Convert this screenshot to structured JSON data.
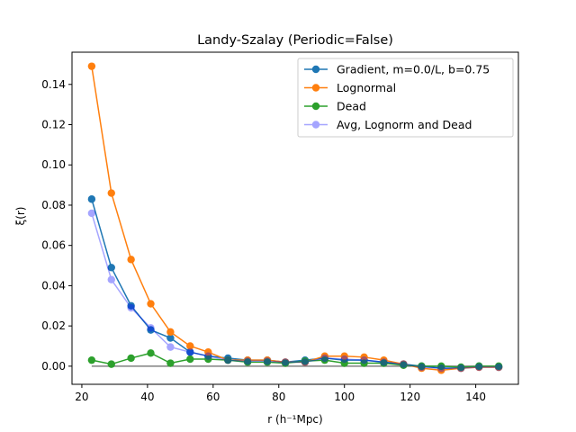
{
  "chart_data": {
    "type": "line",
    "title": "Landy-Szalay (Periodic=False)",
    "xlabel": "r (h⁻¹Mpc)",
    "ylabel": "ξ(r)",
    "xlim": [
      17.0,
      153.0
    ],
    "ylim": [
      -0.009,
      0.156
    ],
    "xticks": [
      20,
      40,
      60,
      80,
      100,
      120,
      140
    ],
    "yticks": [
      0.0,
      0.02,
      0.04,
      0.06,
      0.08,
      0.1,
      0.12,
      0.14
    ],
    "ytick_labels": [
      "0.00",
      "0.02",
      "0.04",
      "0.06",
      "0.08",
      "0.10",
      "0.12",
      "0.14"
    ],
    "legend_position": "upper right",
    "grid": false,
    "x": [
      23,
      29,
      35,
      41,
      47,
      53,
      58.5,
      64.5,
      70.5,
      76.5,
      82,
      88,
      94,
      100,
      106,
      112,
      118,
      123.5,
      129.5,
      135.5,
      141,
      147
    ],
    "series": [
      {
        "name": "Gradient, m=0.0/L, b=0.75",
        "color": "#1f77b4",
        "alpha": 1.0,
        "values": [
          0.083,
          0.049,
          0.03,
          0.018,
          0.014,
          0.007,
          0.005,
          0.004,
          0.003,
          0.003,
          0.002,
          0.003,
          0.004,
          0.003,
          0.003,
          0.002,
          0.001,
          0.0,
          -0.001,
          -0.001,
          0.0,
          -0.0005
        ]
      },
      {
        "name": "Lognormal",
        "color": "#ff7f0e",
        "alpha": 1.0,
        "values": [
          0.149,
          0.086,
          0.053,
          0.031,
          0.017,
          0.01,
          0.007,
          0.003,
          0.003,
          0.003,
          0.002,
          0.002,
          0.005,
          0.005,
          0.0045,
          0.003,
          0.001,
          -0.001,
          -0.002,
          -0.001,
          -0.0005,
          -0.0005
        ]
      },
      {
        "name": "Dead",
        "color": "#2ca02c",
        "alpha": 1.0,
        "values": [
          0.003,
          0.001,
          0.004,
          0.0065,
          0.0015,
          0.0035,
          0.0035,
          0.003,
          0.002,
          0.002,
          0.0015,
          0.0025,
          0.003,
          0.0015,
          0.0015,
          0.0015,
          0.0005,
          0.0,
          0.0,
          -0.0005,
          0.0,
          0.0
        ]
      },
      {
        "name": "Avg, Lognorm and Dead",
        "color": "#0000ff",
        "alpha": 0.35,
        "values": [
          0.076,
          0.043,
          0.029,
          0.019,
          0.0095,
          0.007,
          0.005,
          0.003,
          0.0025,
          0.0025,
          0.002,
          0.002,
          0.004,
          0.0035,
          0.003,
          0.002,
          0.001,
          -0.0005,
          -0.001,
          -0.001,
          -0.0005,
          -0.0005
        ]
      }
    ],
    "reference_line": {
      "y": 0.0,
      "x_from": 23,
      "x_to": 147,
      "color": "#808080"
    }
  }
}
